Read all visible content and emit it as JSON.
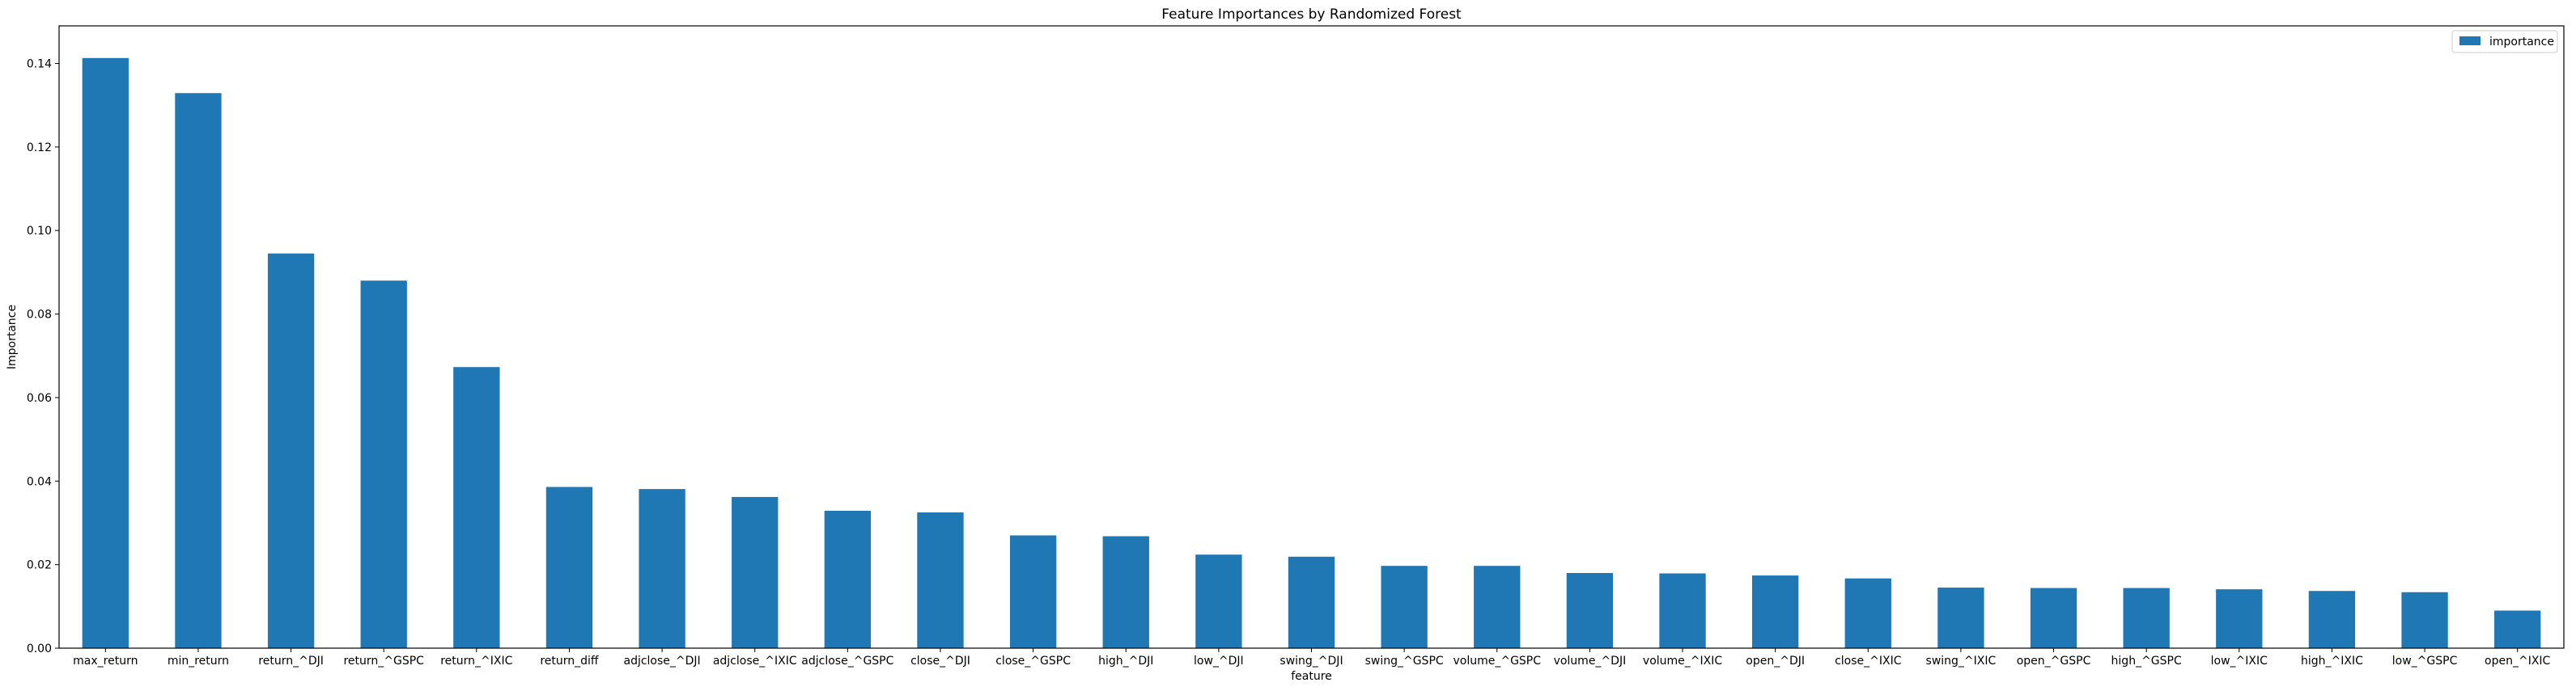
{
  "chart_data": {
    "type": "bar",
    "title": "Feature Importances by Randomized Forest",
    "xlabel": "feature",
    "ylabel": "Importance",
    "ylim": [
      0,
      0.149
    ],
    "yticks": [
      0.0,
      0.02,
      0.04,
      0.06,
      0.08,
      0.1,
      0.12,
      0.14
    ],
    "ytick_labels": [
      "0.00",
      "0.02",
      "0.04",
      "0.06",
      "0.08",
      "0.10",
      "0.12",
      "0.14"
    ],
    "grid": false,
    "legend": {
      "placement": "upper-right",
      "entries": [
        "importance"
      ]
    },
    "categories": [
      "max_return",
      "min_return",
      "return_^DJI",
      "return_^GSPC",
      "return_^IXIC",
      "return_diff",
      "adjclose_^DJI",
      "adjclose_^IXIC",
      "adjclose_^GSPC",
      "close_^DJI",
      "close_^GSPC",
      "high_^DJI",
      "low_^DJI",
      "swing_^DJI",
      "swing_^GSPC",
      "volume_^GSPC",
      "volume_^DJI",
      "volume_^IXIC",
      "open_^DJI",
      "close_^IXIC",
      "swing_^IXIC",
      "open_^GSPC",
      "high_^GSPC",
      "low_^IXIC",
      "high_^IXIC",
      "low_^GSPC",
      "open_^IXIC"
    ],
    "series": [
      {
        "name": "importance",
        "color": "#1f77b4",
        "values": [
          0.1413,
          0.1329,
          0.0945,
          0.088,
          0.0673,
          0.0386,
          0.0381,
          0.0362,
          0.0329,
          0.0325,
          0.027,
          0.0268,
          0.0224,
          0.0219,
          0.0197,
          0.0197,
          0.018,
          0.0179,
          0.0174,
          0.0167,
          0.0145,
          0.0144,
          0.0144,
          0.0141,
          0.0137,
          0.0134,
          0.009
        ]
      }
    ]
  }
}
